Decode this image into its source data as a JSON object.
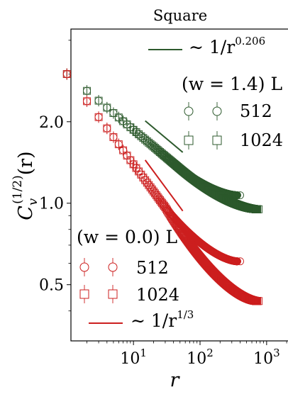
{
  "chart_data": {
    "type": "scatter",
    "title": "Square",
    "xlabel": "r",
    "ylabel_main": "C",
    "ylabel_sub": "v",
    "ylabel_sup": "(1/2)",
    "ylabel_arg": "(r)",
    "xscale": "log",
    "yscale": "log",
    "xlim": [
      1.15,
      2200
    ],
    "ylim": [
      0.31,
      4.4
    ],
    "xticks": [
      {
        "value": 10,
        "base": "10",
        "exp": "1"
      },
      {
        "value": 100,
        "base": "10",
        "exp": "2"
      },
      {
        "value": 1000,
        "base": "10",
        "exp": "3"
      }
    ],
    "yticks": [
      {
        "value": 0.5,
        "label": "0.5"
      },
      {
        "value": 1.0,
        "label": "1.0"
      },
      {
        "value": 2.0,
        "label": "2.0"
      }
    ],
    "colors": {
      "green": "#2d5a2d",
      "red": "#cc1f1f"
    },
    "legend_top": {
      "fit_label": "∼ 1/r",
      "fit_exp": "0.206",
      "group_title": "(w = 1.4) L",
      "entries": [
        "512",
        "1024"
      ]
    },
    "legend_bottom": {
      "group_title": "(w = 0.0) L",
      "entries": [
        "512",
        "1024"
      ],
      "fit_label": "∼ 1/r",
      "fit_exp": "1/3"
    },
    "series": [
      {
        "group": "w=1.4",
        "L": 512,
        "marker": "circle",
        "color": "green",
        "r_max": 362,
        "y0": 3.0,
        "alpha": 0.206,
        "r_break": 45,
        "r_final": 400,
        "y_final": 1.07
      },
      {
        "group": "w=1.4",
        "L": 1024,
        "marker": "square",
        "color": "green",
        "r_max": 724,
        "y0": 3.0,
        "alpha": 0.206,
        "r_break": 45,
        "r_final": 760,
        "y_final": 0.95
      },
      {
        "group": "w=0.0",
        "L": 512,
        "marker": "circle",
        "color": "red",
        "r_max": 362,
        "y0": 3.0,
        "alpha": 0.3333,
        "r_break": 30,
        "r_final": 400,
        "y_final": 0.61
      },
      {
        "group": "w=0.0",
        "L": 1024,
        "marker": "square",
        "color": "red",
        "r_max": 724,
        "y0": 3.0,
        "alpha": 0.3333,
        "r_break": 30,
        "r_final": 760,
        "y_final": 0.435
      }
    ],
    "fit_lines": [
      {
        "name": "∼ 1/r^0.206",
        "color": "green",
        "r_range": [
          15,
          55
        ],
        "amp": 3.52,
        "alpha": 0.206
      },
      {
        "name": "∼ 1/r^1/3",
        "color": "red",
        "r_range": [
          15,
          55
        ],
        "amp": 3.56,
        "alpha": 0.3333
      }
    ],
    "grid": false
  }
}
